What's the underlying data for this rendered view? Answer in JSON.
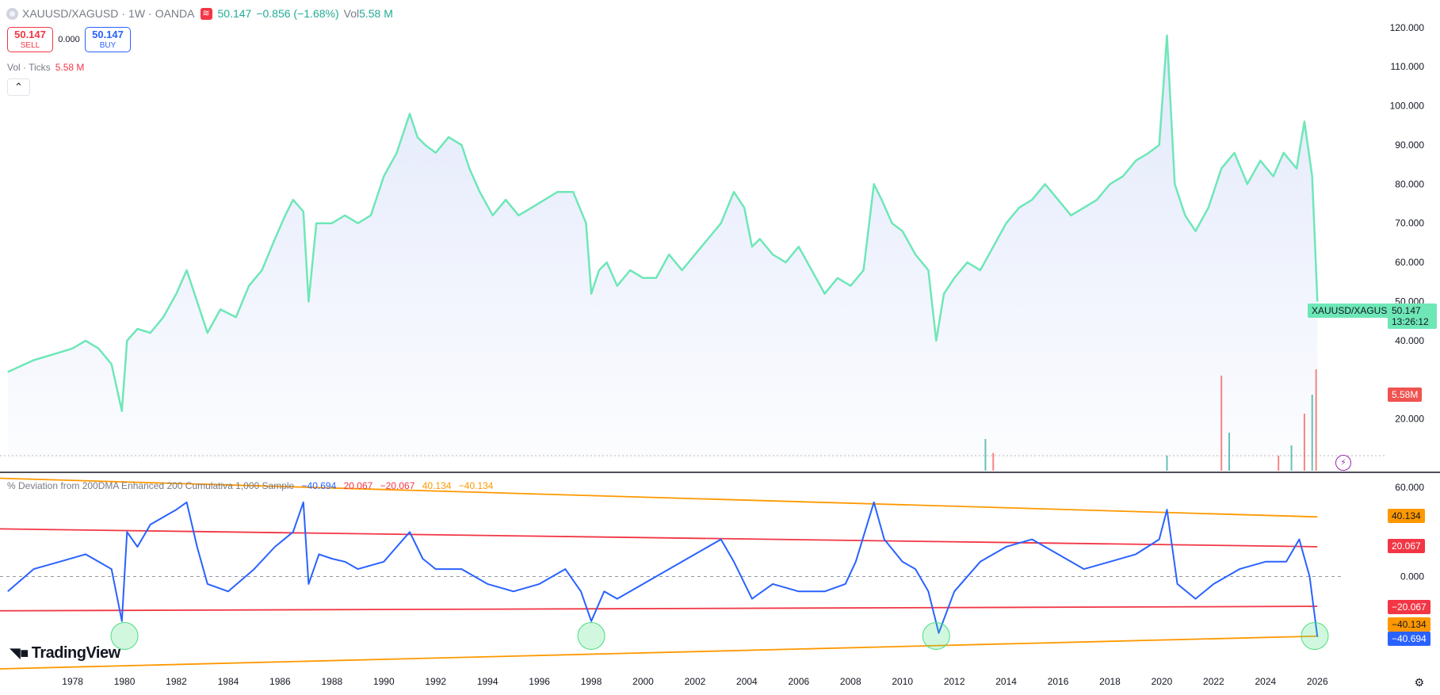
{
  "header": {
    "symbol": "XAUUSD/XAGUSD",
    "interval": "1W",
    "exchange": "OANDA",
    "flag_icon": "market-closed-flag-icon",
    "last": "50.147",
    "change": "−0.856 (−1.68%)",
    "vol_label": "Vol",
    "vol_value": "5.58 M"
  },
  "trade": {
    "sell_price": "50.147",
    "sell_label": "SELL",
    "spread": "0.000",
    "buy_price": "50.147",
    "buy_label": "BUY"
  },
  "volume_legend": {
    "label": "Vol · Ticks",
    "value": "5.58 M"
  },
  "indicator_legend": {
    "name": "% Deviation from 200DMA Enhanced 200 Cumulativa 1,000 Sample",
    "v1": "−40.694",
    "v2": "20.067",
    "v3": "−20.067",
    "v4": "40.134",
    "v5": "−40.134"
  },
  "price_tags": {
    "symbol_tag": "XAUUSD/XAGUSD",
    "last_price": "50.147",
    "countdown": "13:26:12",
    "volume": "5.58M",
    "upper_outer": "40.134",
    "upper_inner": "20.067",
    "lower_inner": "−20.067",
    "lower_outer": "−40.134",
    "indicator_value": "−40.694"
  },
  "logo": "TradingView",
  "colors": {
    "price_line": "#6ee7b7",
    "area_fill": "#dfe6fb",
    "deviation_line": "#2962ff",
    "band_inner": "#f23645",
    "band_outer": "#ff9800",
    "volume_up": "#26a69a",
    "volume_down": "#ef5350",
    "highlight": "#4ade80"
  },
  "chart_data": [
    {
      "type": "area",
      "title": "XAUUSD/XAGUSD",
      "y_ticks": [
        "120.000",
        "110.000",
        "100.000",
        "90.000",
        "80.000",
        "70.000",
        "60.000",
        "50.000",
        "40.000",
        "20.000"
      ],
      "x_ticks": [
        "1978",
        "1980",
        "1982",
        "1984",
        "1986",
        "1988",
        "1990",
        "1992",
        "1994",
        "1996",
        "1998",
        "2000",
        "2002",
        "2004",
        "2006",
        "2008",
        "2010",
        "2012",
        "2014",
        "2016",
        "2018",
        "2020",
        "2022",
        "2024",
        "2026"
      ],
      "x": [
        1975.5,
        1976.5,
        1977.5,
        1978.0,
        1978.5,
        1979.0,
        1979.5,
        1979.9,
        1980.1,
        1980.5,
        1981.0,
        1981.5,
        1982.0,
        1982.4,
        1982.8,
        1983.2,
        1983.7,
        1984.3,
        1984.8,
        1985.3,
        1985.8,
        1986.2,
        1986.5,
        1986.9,
        1987.1,
        1987.4,
        1988.0,
        1988.5,
        1989.0,
        1989.5,
        1990.0,
        1990.5,
        1991.0,
        1991.3,
        1991.6,
        1992.0,
        1992.5,
        1993.0,
        1993.3,
        1993.7,
        1994.2,
        1994.7,
        1995.2,
        1995.7,
        1996.2,
        1996.7,
        1997.3,
        1997.8,
        1998.0,
        1998.3,
        1998.6,
        1999.0,
        1999.5,
        2000.0,
        2000.5,
        2001.0,
        2001.5,
        2002.0,
        2002.5,
        2003.0,
        2003.5,
        2003.9,
        2004.2,
        2004.5,
        2005.0,
        2005.5,
        2006.0,
        2006.5,
        2007.0,
        2007.5,
        2008.0,
        2008.5,
        2008.9,
        2009.2,
        2009.6,
        2010.0,
        2010.5,
        2011.0,
        2011.3,
        2011.6,
        2012.0,
        2012.5,
        2013.0,
        2013.5,
        2014.0,
        2014.5,
        2015.0,
        2015.5,
        2016.0,
        2016.5,
        2017.0,
        2017.5,
        2018.0,
        2018.5,
        2019.0,
        2019.5,
        2019.9,
        2020.2,
        2020.5,
        2020.9,
        2021.3,
        2021.8,
        2022.3,
        2022.8,
        2023.3,
        2023.8,
        2024.3,
        2024.7,
        2025.2,
        2025.5,
        2025.8,
        2026.0
      ],
      "y": [
        32,
        35,
        37,
        38,
        40,
        38,
        34,
        22,
        40,
        43,
        42,
        46,
        52,
        58,
        50,
        42,
        48,
        46,
        54,
        58,
        66,
        72,
        76,
        73,
        50,
        70,
        70,
        72,
        70,
        72,
        82,
        88,
        98,
        92,
        90,
        88,
        92,
        90,
        84,
        78,
        72,
        76,
        72,
        74,
        76,
        78,
        78,
        70,
        52,
        58,
        60,
        54,
        58,
        56,
        56,
        62,
        58,
        62,
        66,
        70,
        78,
        74,
        64,
        66,
        62,
        60,
        64,
        58,
        52,
        56,
        54,
        58,
        80,
        76,
        70,
        68,
        62,
        58,
        40,
        52,
        56,
        60,
        58,
        64,
        70,
        74,
        76,
        80,
        76,
        72,
        74,
        76,
        80,
        82,
        86,
        88,
        90,
        118,
        80,
        72,
        68,
        74,
        84,
        88,
        80,
        86,
        82,
        88,
        84,
        96,
        82,
        50
      ],
      "volume_peak_label": "5.58M",
      "last": 50.147
    },
    {
      "type": "line",
      "title": "% Deviation from 200DMA Enhanced 200 Cumulativa 1,000 Sample",
      "y_ticks": [
        "60.000",
        "0.000"
      ],
      "x": [
        1975.5,
        1976.5,
        1977.5,
        1978.5,
        1979.5,
        1979.9,
        1980.1,
        1980.5,
        1981.0,
        1981.5,
        1982.0,
        1982.4,
        1982.8,
        1983.2,
        1984.0,
        1985.0,
        1985.8,
        1986.5,
        1986.9,
        1987.1,
        1987.5,
        1988.0,
        1988.5,
        1989.0,
        1990.0,
        1990.5,
        1991.0,
        1991.5,
        1992.0,
        1993.0,
        1994.0,
        1995.0,
        1996.0,
        1997.0,
        1997.6,
        1998.0,
        1998.5,
        1999.0,
        2000.0,
        2001.0,
        2002.0,
        2003.0,
        2003.5,
        2004.2,
        2005.0,
        2006.0,
        2007.0,
        2007.8,
        2008.2,
        2008.9,
        2009.3,
        2010.0,
        2010.5,
        2011.0,
        2011.4,
        2012.0,
        2013.0,
        2014.0,
        2015.0,
        2016.0,
        2017.0,
        2018.0,
        2019.0,
        2019.9,
        2020.2,
        2020.6,
        2021.3,
        2022.0,
        2023.0,
        2024.0,
        2024.8,
        2025.3,
        2025.7,
        2026.0
      ],
      "y": [
        -10,
        5,
        10,
        15,
        5,
        -30,
        30,
        20,
        35,
        40,
        45,
        50,
        20,
        -5,
        -10,
        5,
        20,
        30,
        50,
        -5,
        15,
        12,
        10,
        5,
        10,
        20,
        30,
        12,
        5,
        5,
        -5,
        -10,
        -5,
        5,
        -10,
        -30,
        -10,
        -15,
        -5,
        5,
        15,
        25,
        10,
        -15,
        -5,
        -10,
        -10,
        -5,
        10,
        50,
        25,
        10,
        5,
        -10,
        -38,
        -10,
        10,
        20,
        25,
        15,
        5,
        10,
        15,
        25,
        45,
        -5,
        -15,
        -5,
        5,
        10,
        10,
        25,
        0,
        -40.694
      ],
      "bands": {
        "outer_upper": 40.134,
        "inner_upper": 20.067,
        "inner_lower": -20.067,
        "outer_lower": -40.134
      },
      "highlighted_lows": [
        1980.0,
        1998.0,
        2011.3,
        2025.9
      ]
    }
  ]
}
